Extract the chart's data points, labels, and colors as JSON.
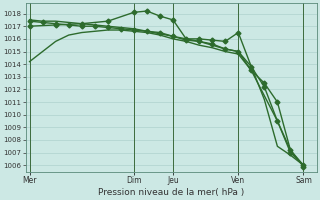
{
  "xlabel": "Pression niveau de la mer( hPa )",
  "bg_color": "#cce8e4",
  "grid_color": "#a8ccc8",
  "line_color": "#2d6b2d",
  "vline_color": "#3d6b3d",
  "ylim": [
    1005.5,
    1018.8
  ],
  "yticks": [
    1006,
    1007,
    1008,
    1009,
    1010,
    1011,
    1012,
    1013,
    1014,
    1015,
    1016,
    1017,
    1018
  ],
  "x_day_labels": [
    "Mer",
    "Dim",
    "Jeu",
    "Ven",
    "Sam"
  ],
  "x_day_positions": [
    0,
    8,
    11,
    16,
    21
  ],
  "xlim": [
    -0.3,
    22.0
  ],
  "lines": [
    {
      "x": [
        0,
        1,
        2,
        3,
        4,
        5,
        6,
        7,
        8,
        9,
        10,
        11,
        12,
        13,
        14,
        15,
        16,
        17,
        18,
        19,
        20,
        21
      ],
      "y": [
        1014.2,
        1015.0,
        1015.8,
        1016.3,
        1016.5,
        1016.6,
        1016.7,
        1016.7,
        1016.6,
        1016.5,
        1016.3,
        1016.0,
        1015.8,
        1015.5,
        1015.3,
        1015.0,
        1014.8,
        1013.5,
        1011.5,
        1009.5,
        1007.2,
        1006.0
      ],
      "marker": null,
      "lw": 1.0
    },
    {
      "x": [
        0,
        1,
        2,
        3,
        4,
        5,
        6,
        7,
        8,
        9,
        10,
        11,
        12,
        13,
        14,
        15,
        16,
        17,
        18,
        19,
        20,
        21
      ],
      "y": [
        1017.4,
        1017.3,
        1017.2,
        1017.1,
        1017.0,
        1017.0,
        1016.9,
        1016.8,
        1016.7,
        1016.6,
        1016.5,
        1016.2,
        1015.9,
        1015.8,
        1015.6,
        1015.2,
        1015.0,
        1013.5,
        1012.5,
        1011.0,
        1007.2,
        1005.9
      ],
      "marker": "D",
      "lw": 1.0
    },
    {
      "x": [
        0,
        2,
        4,
        6,
        8,
        9,
        10,
        11,
        12,
        13,
        14,
        15,
        16,
        17,
        18,
        19,
        20,
        21
      ],
      "y": [
        1017.0,
        1017.1,
        1017.2,
        1017.4,
        1018.1,
        1018.2,
        1017.8,
        1017.5,
        1016.0,
        1016.0,
        1015.9,
        1015.8,
        1016.5,
        1013.8,
        1012.2,
        1009.5,
        1007.0,
        1006.0
      ],
      "marker": "D",
      "lw": 1.0
    },
    {
      "x": [
        0,
        1,
        2,
        3,
        4,
        5,
        6,
        7,
        8,
        9,
        10,
        11,
        12,
        13,
        14,
        15,
        16,
        17,
        18,
        19,
        20,
        21
      ],
      "y": [
        1017.5,
        1017.4,
        1017.4,
        1017.3,
        1017.2,
        1017.1,
        1017.0,
        1016.9,
        1016.8,
        1016.6,
        1016.4,
        1016.2,
        1016.0,
        1015.8,
        1015.5,
        1015.2,
        1015.0,
        1013.8,
        1011.2,
        1007.5,
        1006.8,
        1006.0
      ],
      "marker": null,
      "lw": 1.0
    }
  ],
  "vlines": [
    0,
    8,
    11,
    16,
    21
  ],
  "marker_size": 2.5
}
